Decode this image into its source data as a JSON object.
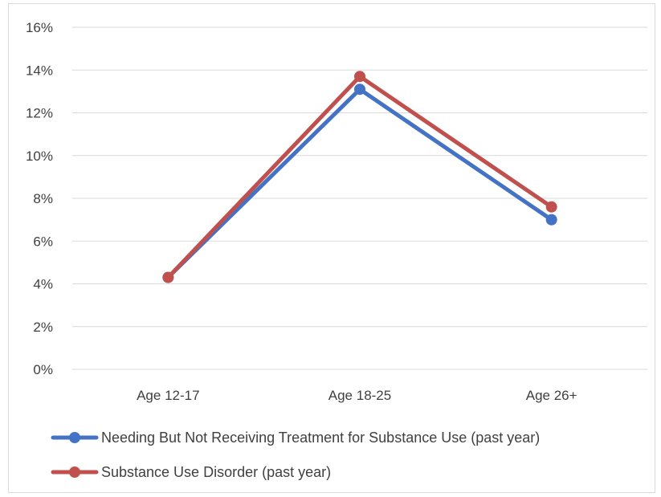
{
  "chart_data": {
    "type": "line",
    "title": "",
    "xlabel": "",
    "ylabel": "",
    "categories": [
      "Age 12-17",
      "Age 18-25",
      "Age 26+"
    ],
    "ylim": [
      0,
      0.16
    ],
    "yticks": [
      "0%",
      "2%",
      "4%",
      "6%",
      "8%",
      "10%",
      "12%",
      "14%",
      "16%"
    ],
    "grid": "horizontal",
    "legend_position": "bottom",
    "series": [
      {
        "name": "Needing But Not Receiving Treatment for Substance Use (past year)",
        "values": [
          0.043,
          0.131,
          0.07
        ],
        "color": "#4472C4"
      },
      {
        "name": "Substance Use Disorder (past year)",
        "values": [
          0.043,
          0.137,
          0.076
        ],
        "color": "#C0504D"
      }
    ]
  }
}
